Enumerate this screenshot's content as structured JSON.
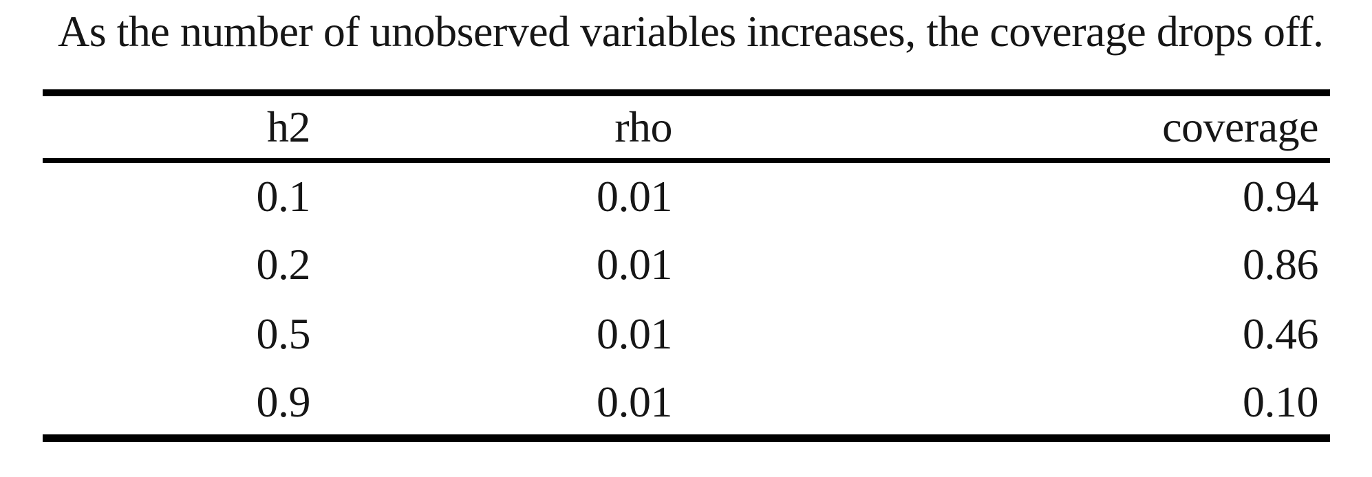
{
  "caption": "As the number of unobserved variables increases, the coverage drops off.",
  "table": {
    "columns": [
      "h2",
      "rho",
      "coverage"
    ],
    "rows": [
      [
        "0.1",
        "0.01",
        "0.94"
      ],
      [
        "0.2",
        "0.01",
        "0.86"
      ],
      [
        "0.5",
        "0.01",
        "0.46"
      ],
      [
        "0.9",
        "0.01",
        "0.10"
      ]
    ]
  },
  "colors": {
    "text": "#161616",
    "rule": "#000000",
    "background": "#ffffff"
  }
}
